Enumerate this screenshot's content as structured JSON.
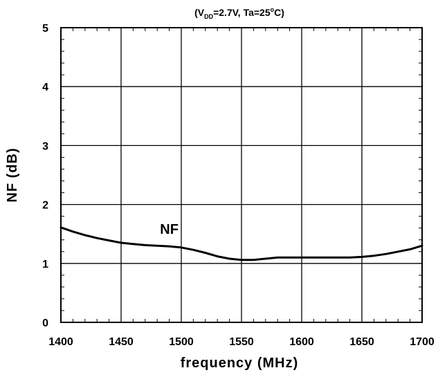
{
  "chart_data": {
    "type": "line",
    "title": {
      "prefix": "(V",
      "subscript": "DD",
      "middle": "=2.7V, Ta=25",
      "superscript": "o",
      "suffix": "C)"
    },
    "xlabel": "frequency (MHz)",
    "ylabel": "NF (dB)",
    "xlim": [
      1400,
      1700
    ],
    "ylim": [
      0,
      5
    ],
    "x_ticks": [
      "1400",
      "1450",
      "1500",
      "1550",
      "1600",
      "1650",
      "1700"
    ],
    "y_ticks": [
      "0",
      "1",
      "2",
      "3",
      "4",
      "5"
    ],
    "grid": true,
    "series": [
      {
        "name": "NF",
        "x": [
          1400,
          1410,
          1420,
          1430,
          1440,
          1450,
          1460,
          1470,
          1480,
          1490,
          1500,
          1510,
          1520,
          1530,
          1540,
          1550,
          1560,
          1570,
          1580,
          1590,
          1600,
          1610,
          1620,
          1630,
          1640,
          1650,
          1660,
          1670,
          1680,
          1690,
          1700
        ],
        "y": [
          1.61,
          1.54,
          1.48,
          1.43,
          1.39,
          1.35,
          1.33,
          1.31,
          1.3,
          1.29,
          1.27,
          1.23,
          1.18,
          1.12,
          1.08,
          1.06,
          1.06,
          1.08,
          1.1,
          1.1,
          1.1,
          1.1,
          1.1,
          1.1,
          1.1,
          1.11,
          1.13,
          1.16,
          1.2,
          1.24,
          1.3
        ]
      }
    ],
    "series_label": {
      "text": "NF",
      "x": 1490,
      "y": 1.5
    }
  }
}
